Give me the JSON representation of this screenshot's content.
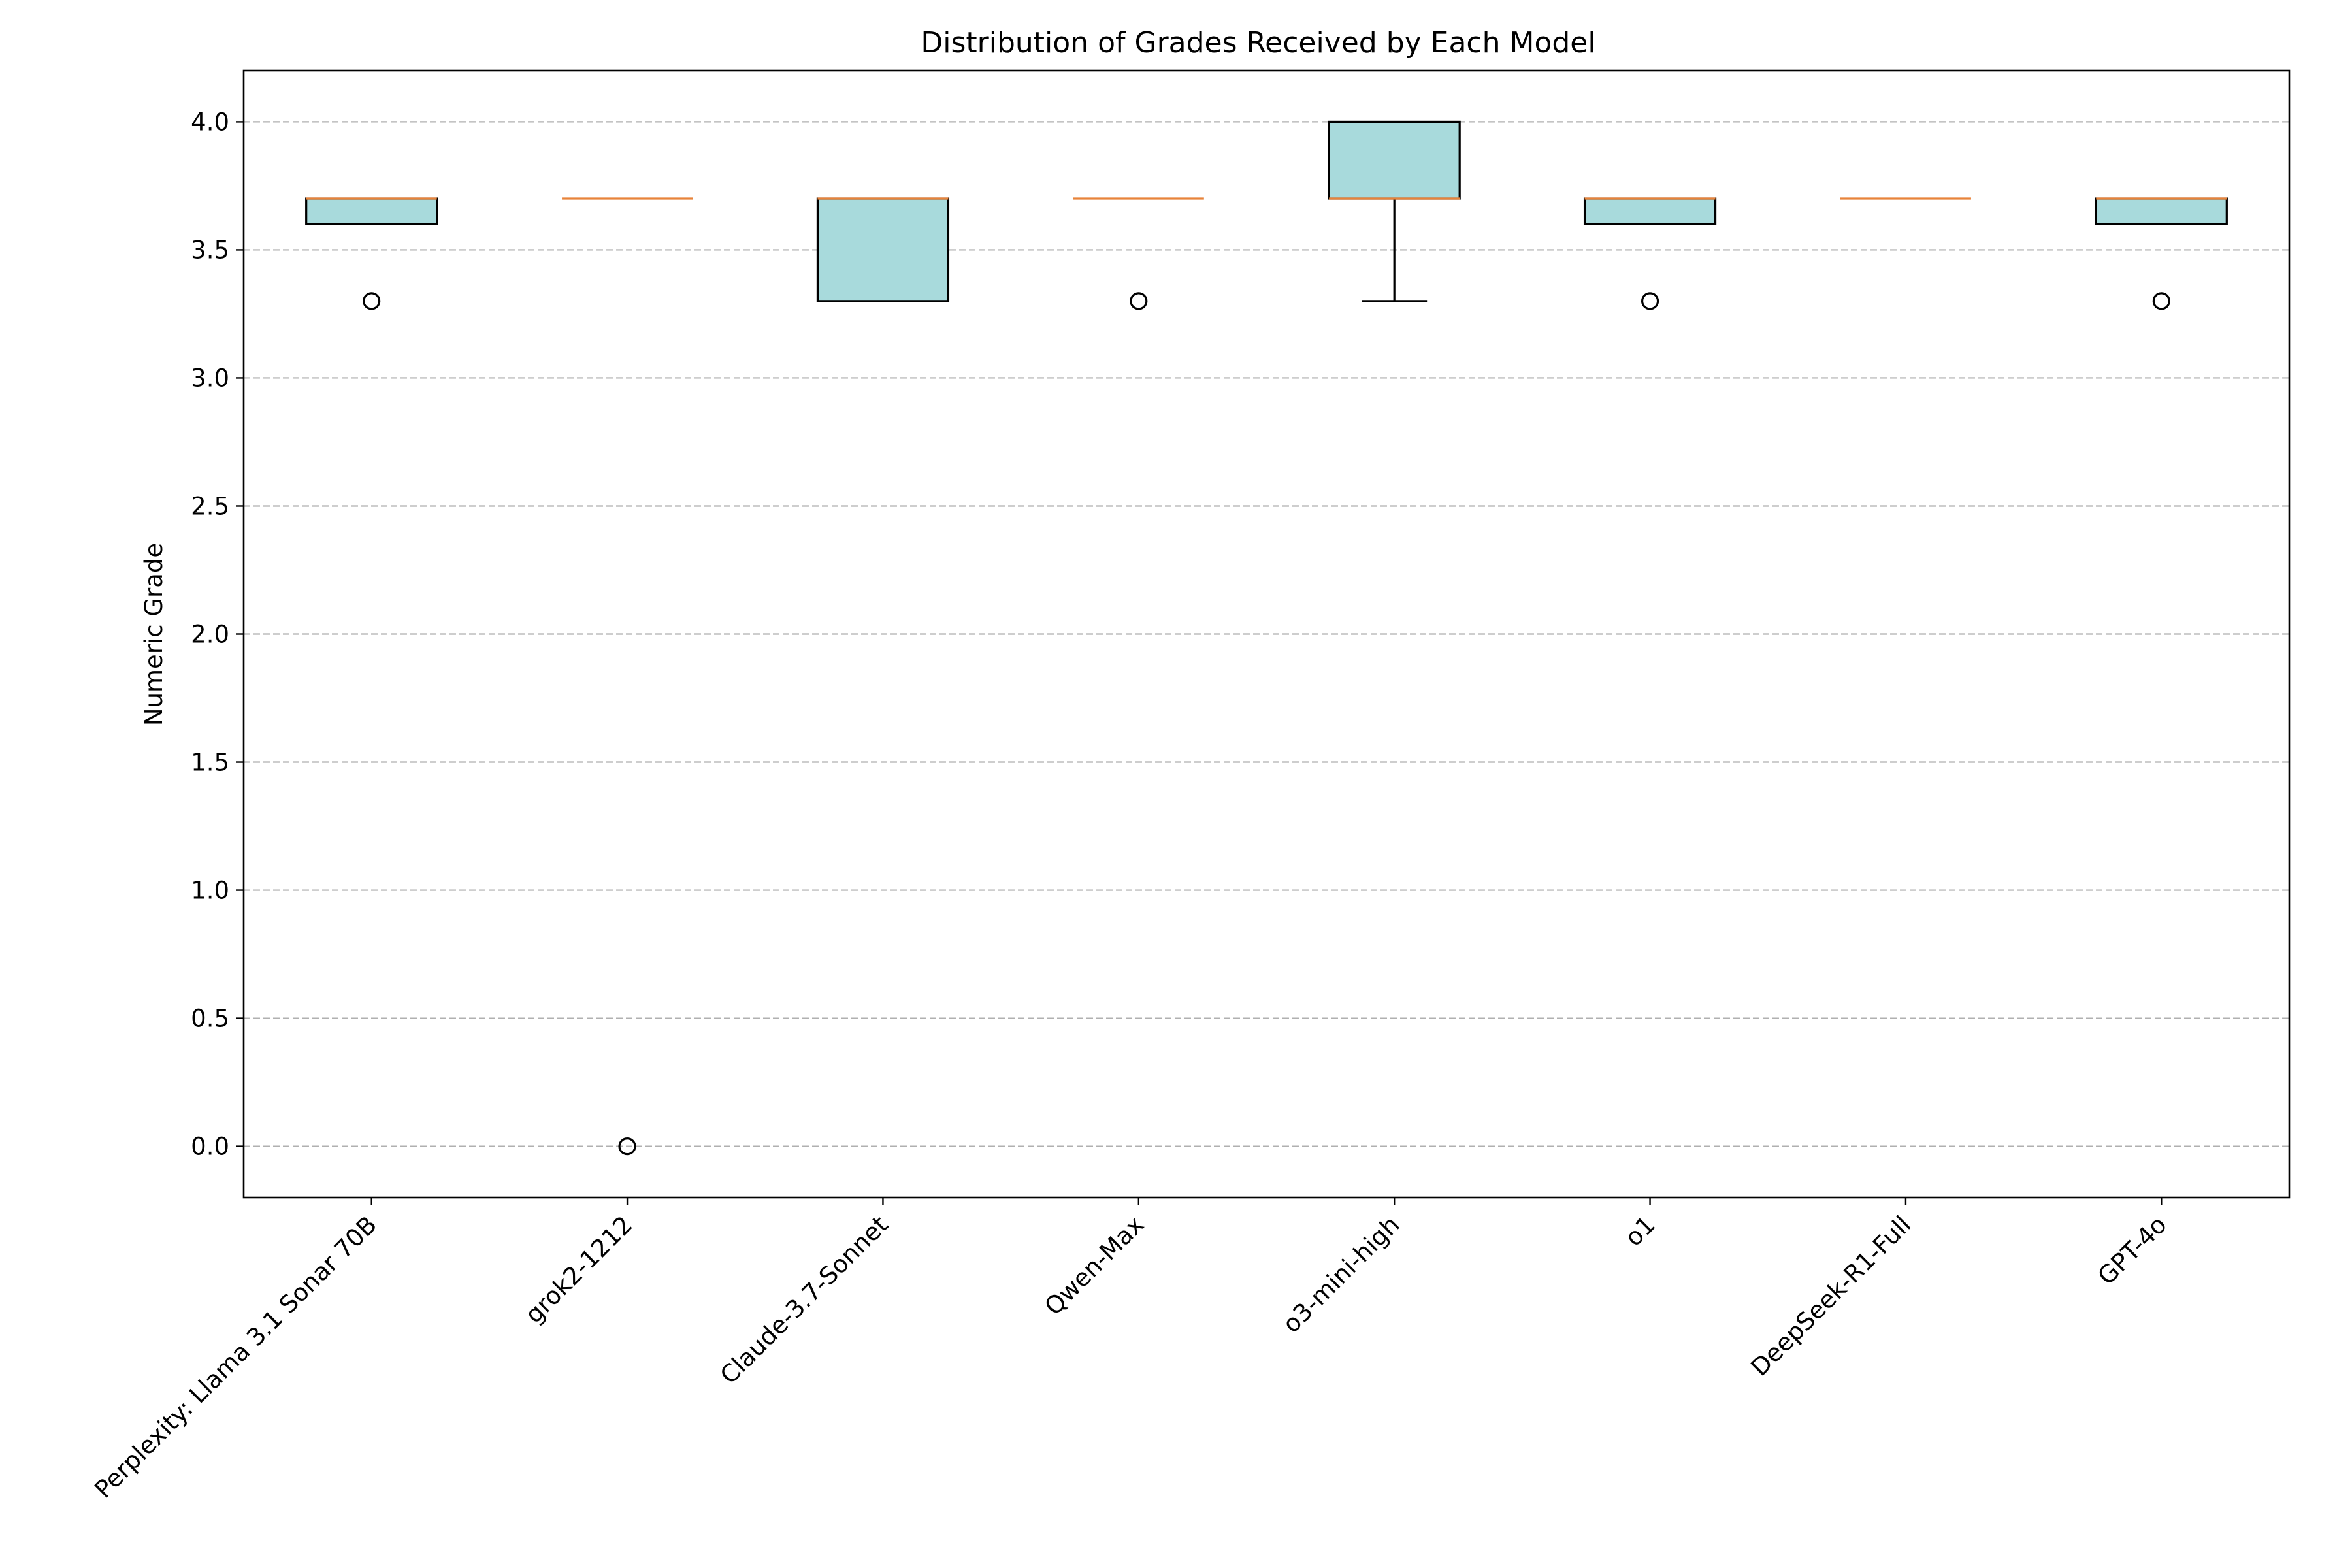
{
  "chart_data": {
    "type": "boxplot",
    "title": "Distribution of Grades Received by Each Model",
    "xlabel": "",
    "ylabel": "Numeric Grade",
    "ylim": [
      -0.2,
      4.2
    ],
    "yticks": [
      0.0,
      0.5,
      1.0,
      1.5,
      2.0,
      2.5,
      3.0,
      3.5,
      4.0
    ],
    "ytick_labels": [
      "0.0",
      "0.5",
      "1.0",
      "1.5",
      "2.0",
      "2.5",
      "3.0",
      "3.5",
      "4.0"
    ],
    "grid": "y-dashed",
    "colors": {
      "box_fill": "#a8dadc",
      "median": "#e8833a",
      "grid": "#b0b0b0"
    },
    "categories": [
      "Perplexity: Llama 3.1 Sonar 70B",
      "grok2-1212",
      "Claude-3.7-Sonnet",
      "Qwen-Max",
      "o3-mini-high",
      "o1",
      "DeepSeek-R1-Full",
      "GPT-4o"
    ],
    "boxes": [
      {
        "q1": 3.6,
        "median": 3.7,
        "q3": 3.7,
        "whislo": 3.6,
        "whishi": 3.7,
        "fliers": [
          3.3
        ]
      },
      {
        "q1": 3.7,
        "median": 3.7,
        "q3": 3.7,
        "whislo": 3.7,
        "whishi": 3.7,
        "fliers": [
          0.0
        ]
      },
      {
        "q1": 3.3,
        "median": 3.7,
        "q3": 3.7,
        "whislo": 3.3,
        "whishi": 3.7,
        "fliers": []
      },
      {
        "q1": 3.7,
        "median": 3.7,
        "q3": 3.7,
        "whislo": 3.7,
        "whishi": 3.7,
        "fliers": [
          3.3
        ]
      },
      {
        "q1": 3.7,
        "median": 3.7,
        "q3": 4.0,
        "whislo": 3.3,
        "whishi": 4.0,
        "fliers": []
      },
      {
        "q1": 3.6,
        "median": 3.7,
        "q3": 3.7,
        "whislo": 3.6,
        "whishi": 3.7,
        "fliers": [
          3.3
        ]
      },
      {
        "q1": 3.7,
        "median": 3.7,
        "q3": 3.7,
        "whislo": 3.7,
        "whishi": 3.7,
        "fliers": []
      },
      {
        "q1": 3.6,
        "median": 3.7,
        "q3": 3.7,
        "whislo": 3.6,
        "whishi": 3.7,
        "fliers": [
          3.3
        ]
      }
    ]
  }
}
